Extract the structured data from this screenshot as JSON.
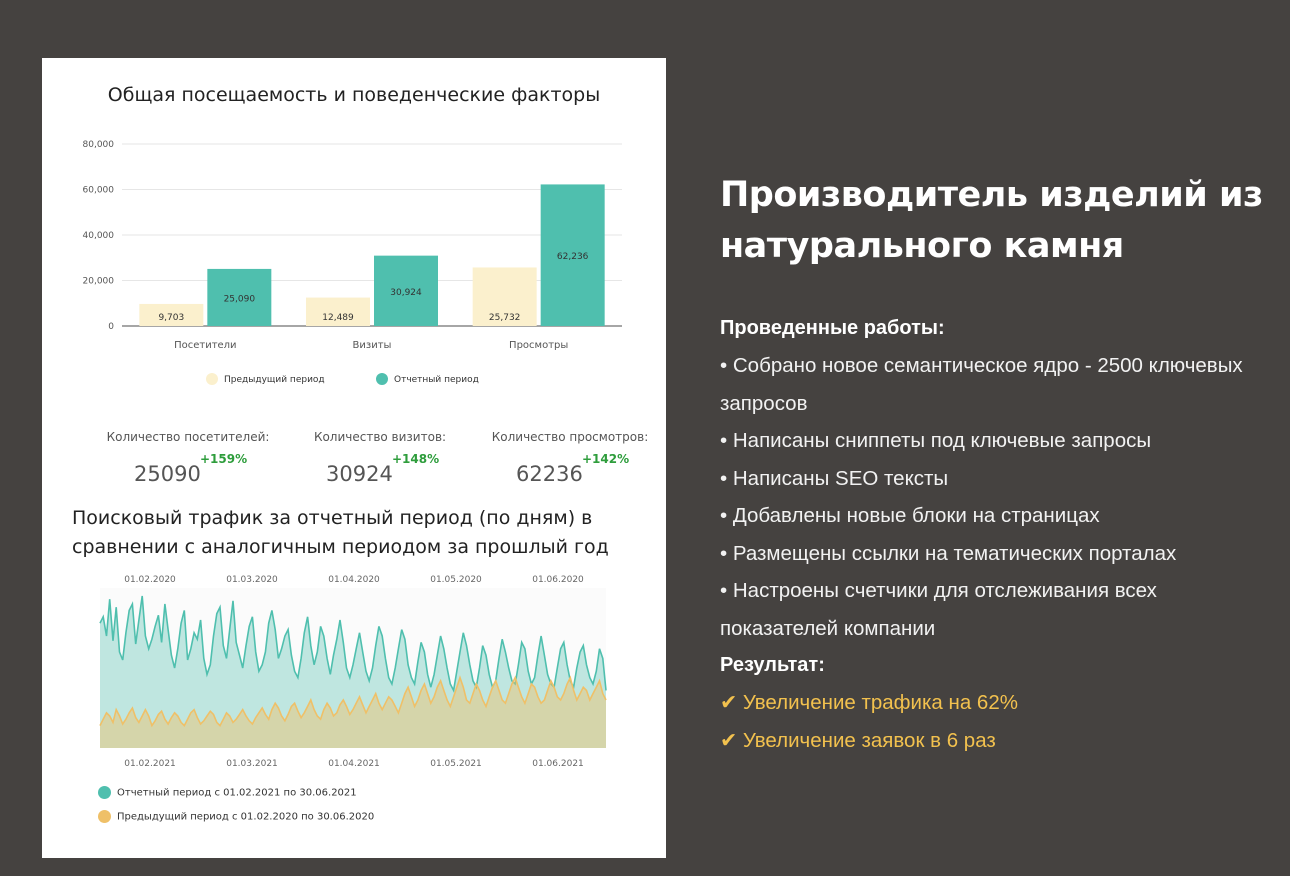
{
  "colors": {
    "previous": "#fbf0cd",
    "current": "#4fbfae",
    "line_current": "#4fbfae",
    "line_previous": "#efc068",
    "positive": "#2e9d3c",
    "accent": "#f2c14e"
  },
  "card": {
    "title": "Общая посещаемость и поведенческие факторы",
    "stats": [
      {
        "label": "Количество посетителей:",
        "value": "25090",
        "delta": "+159%"
      },
      {
        "label": "Количество визитов:",
        "value": "30924",
        "delta": "+148%"
      },
      {
        "label": "Количество просмотров:",
        "value": "62236",
        "delta": "+142%"
      }
    ],
    "traffic_title": "Поисковый трафик за отчетный период (по дням) в сравнении с аналогичным периодом за прошлый год",
    "legend": [
      {
        "label": "Отчетный период с 01.02.2021 по 30.06.2021",
        "icon": "teal-dot-icon"
      },
      {
        "label": "Предыдущий период с 01.02.2020 по 30.06.2020",
        "icon": "yellow-dot-icon"
      }
    ]
  },
  "chart_data": [
    {
      "type": "bar",
      "title": "Общая посещаемость и поведенческие факторы",
      "categories": [
        "Посетители",
        "Визиты",
        "Просмотры"
      ],
      "series": [
        {
          "name": "Предыдущий период",
          "values": [
            9703,
            12489,
            25732
          ],
          "labels": [
            "9,703",
            "12,489",
            "25,732"
          ]
        },
        {
          "name": "Отчетный период",
          "values": [
            25090,
            30924,
            62236
          ],
          "labels": [
            "25,090",
            "30,924",
            "62,236"
          ]
        }
      ],
      "yticks": [
        "0",
        "20,000",
        "40,000",
        "60,000",
        "80,000"
      ],
      "ylim": [
        0,
        80000
      ],
      "grid": true,
      "legend": "bottom"
    },
    {
      "type": "area",
      "title": "Поисковый трафик за отчетный период (по дням) в сравнении с аналогичным периодом за прошлый год",
      "x_top_ticks": [
        "01.02.2020",
        "01.03.2020",
        "01.04.2020",
        "01.05.2020",
        "01.06.2020"
      ],
      "x_bottom_ticks": [
        "01.02.2021",
        "01.03.2021",
        "01.04.2021",
        "01.05.2021",
        "01.06.2021"
      ],
      "ylim": [
        0,
        100
      ],
      "series": [
        {
          "name": "Отчетный период с 01.02.2021 по 30.06.2021",
          "values": [
            78,
            82,
            70,
            93,
            67,
            88,
            60,
            55,
            72,
            86,
            90,
            65,
            80,
            95,
            70,
            62,
            68,
            76,
            83,
            66,
            90,
            74,
            58,
            50,
            62,
            78,
            86,
            55,
            62,
            72,
            68,
            80,
            56,
            46,
            52,
            70,
            84,
            88,
            64,
            56,
            74,
            92,
            66,
            58,
            50,
            64,
            76,
            82,
            60,
            48,
            52,
            60,
            78,
            86,
            74,
            56,
            62,
            70,
            74,
            58,
            48,
            44,
            56,
            72,
            82,
            64,
            52,
            60,
            76,
            70,
            56,
            46,
            58,
            68,
            80,
            66,
            50,
            44,
            52,
            62,
            72,
            60,
            48,
            42,
            50,
            64,
            76,
            70,
            56,
            44,
            40,
            50,
            62,
            74,
            68,
            52,
            44,
            40,
            54,
            66,
            60,
            46,
            38,
            46,
            58,
            70,
            62,
            50,
            40,
            36,
            48,
            60,
            72,
            64,
            52,
            42,
            38,
            50,
            64,
            58,
            46,
            38,
            42,
            56,
            68,
            60,
            50,
            42,
            40,
            52,
            66,
            62,
            48,
            40,
            44,
            58,
            70,
            58,
            46,
            40,
            38,
            50,
            62,
            66,
            52,
            42,
            38,
            50,
            60,
            64,
            52,
            44,
            40,
            48,
            62,
            56,
            36
          ]
        },
        {
          "name": "Предыдущий период с 01.02.2020 по 30.06.2020",
          "values": [
            14,
            18,
            22,
            20,
            16,
            24,
            20,
            15,
            18,
            22,
            25,
            19,
            16,
            20,
            24,
            20,
            14,
            17,
            21,
            23,
            18,
            15,
            19,
            22,
            20,
            16,
            14,
            18,
            22,
            24,
            19,
            15,
            17,
            20,
            23,
            21,
            16,
            14,
            18,
            22,
            20,
            16,
            18,
            21,
            24,
            20,
            17,
            15,
            19,
            22,
            25,
            21,
            18,
            24,
            28,
            25,
            20,
            17,
            21,
            26,
            28,
            23,
            19,
            22,
            26,
            30,
            24,
            20,
            18,
            24,
            28,
            25,
            20,
            22,
            27,
            30,
            26,
            21,
            24,
            28,
            32,
            27,
            22,
            26,
            30,
            34,
            28,
            24,
            28,
            32,
            30,
            26,
            22,
            28,
            34,
            38,
            32,
            26,
            30,
            36,
            40,
            34,
            28,
            32,
            38,
            42,
            36,
            30,
            26,
            32,
            38,
            44,
            38,
            30,
            28,
            34,
            40,
            36,
            30,
            26,
            32,
            38,
            42,
            36,
            30,
            28,
            34,
            40,
            44,
            38,
            32,
            28,
            34,
            40,
            38,
            32,
            28,
            30,
            36,
            42,
            38,
            32,
            30,
            34,
            40,
            44,
            36,
            30,
            34,
            38,
            36,
            30,
            34,
            38,
            42,
            34,
            30
          ]
        }
      ],
      "legend": "bottom"
    }
  ],
  "right": {
    "headline": "Производитель изделий из натурального камня",
    "works_title": "Проведенные работы:",
    "works": [
      "• Собрано новое семантическое ядро - 2500 ключевых запросов",
      "• Написаны сниппеты под ключевые запросы",
      "• Написаны SEO тексты",
      "• Добавлены новые блоки на страницах",
      "• Размещены ссылки на тематических порталах",
      "• Настроены счетчики для отслеживания всех показателей компании"
    ],
    "result_title": "Результат:",
    "results": [
      "✔ Увеличение трафика на 62%",
      "✔ Увеличение заявок в 6 раз"
    ]
  }
}
